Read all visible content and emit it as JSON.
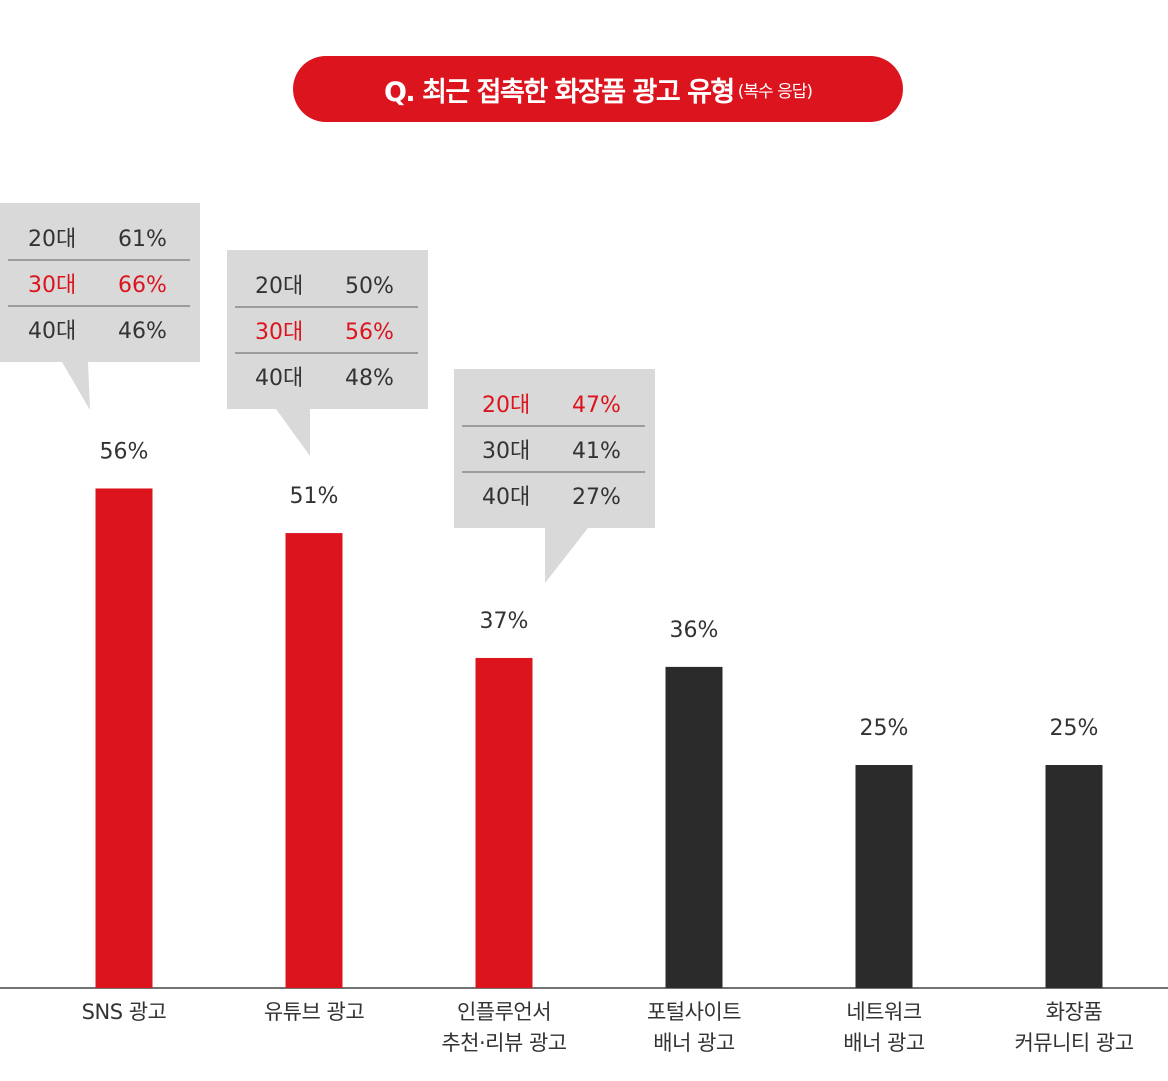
{
  "title": "Q. 최근 접촉한 화장품 광고 유형",
  "subtitle": "(복수 응답)",
  "colors": {
    "highlight_bar": "#dc141e",
    "normal_bar": "#2b2b2b",
    "bubble_bg": "#d9d9d9",
    "bubble_highlight_text": "#dc141e",
    "bubble_text": "#333333",
    "title_bg": "#dc141e"
  },
  "chart_data": {
    "type": "bar",
    "categories": [
      [
        "SNS 광고"
      ],
      [
        "유튜브 광고"
      ],
      [
        "인플루언서",
        "추천·리뷰 광고"
      ],
      [
        "포털사이트",
        "배너 광고"
      ],
      [
        "네트워크",
        "배너 광고"
      ],
      [
        "화장품",
        "커뮤니티 광고"
      ]
    ],
    "values": [
      56,
      51,
      37,
      36,
      25,
      25
    ],
    "value_labels": [
      "56%",
      "51%",
      "37%",
      "36%",
      "25%",
      "25%"
    ],
    "highlighted": [
      true,
      true,
      true,
      false,
      false,
      false
    ],
    "ylim": [
      0,
      100
    ],
    "breakdowns": [
      {
        "bar_index": 0,
        "rows": [
          {
            "age": "20대",
            "value": "61%",
            "highlight": false
          },
          {
            "age": "30대",
            "value": "66%",
            "highlight": true
          },
          {
            "age": "40대",
            "value": "46%",
            "highlight": false
          }
        ]
      },
      {
        "bar_index": 1,
        "rows": [
          {
            "age": "20대",
            "value": "50%",
            "highlight": false
          },
          {
            "age": "30대",
            "value": "56%",
            "highlight": true
          },
          {
            "age": "40대",
            "value": "48%",
            "highlight": false
          }
        ]
      },
      {
        "bar_index": 2,
        "rows": [
          {
            "age": "20대",
            "value": "47%",
            "highlight": true
          },
          {
            "age": "30대",
            "value": "41%",
            "highlight": false
          },
          {
            "age": "40대",
            "value": "27%",
            "highlight": false
          }
        ]
      }
    ]
  }
}
